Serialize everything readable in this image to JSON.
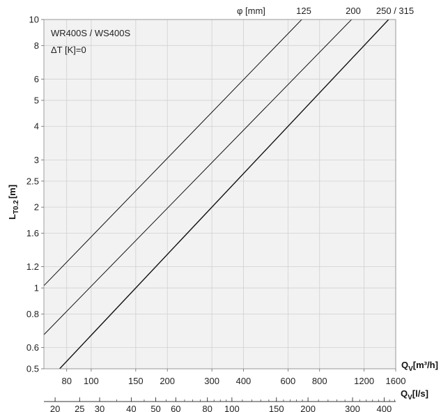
{
  "chart_data": {
    "type": "line",
    "title_lines": [
      "WR400S / WS400S",
      "ΔT [K]=0"
    ],
    "x_scale": "log",
    "y_scale": "log",
    "xlim": [
      65,
      1600
    ],
    "ylim": [
      0.5,
      10
    ],
    "xlabel_main": "Q",
    "xlabel_main_sub": "V",
    "xlabel_main_unit": "[m³/h]",
    "xlabel_secondary": "Q",
    "xlabel_secondary_sub": "V",
    "xlabel_secondary_unit": "[l/s]",
    "ylabel": "L",
    "ylabel_sub": "T0.2",
    "ylabel_unit": "[m]",
    "grid": true,
    "x_ticks": [
      80,
      100,
      150,
      200,
      300,
      400,
      600,
      800,
      1200,
      1600
    ],
    "x_tick_labels": [
      "80",
      "100",
      "150",
      "200",
      "300",
      "400",
      "600",
      "800",
      "1200",
      "1600"
    ],
    "y_ticks": [
      0.5,
      0.6,
      0.8,
      1,
      1.2,
      1.6,
      2,
      2.5,
      3,
      4,
      5,
      6,
      8,
      10
    ],
    "y_tick_labels": [
      "0.5",
      "0.6",
      "0.8",
      "1",
      "1.2",
      "1.6",
      "2",
      "2.5",
      "3",
      "4",
      "5",
      "6",
      "8",
      "10"
    ],
    "ls_ticks": [
      20,
      25,
      30,
      40,
      50,
      60,
      80,
      100,
      150,
      200,
      300,
      400
    ],
    "ls_tick_labels": [
      "20",
      "25",
      "30",
      "40",
      "50",
      "60",
      "80",
      "100",
      "150",
      "200",
      "300",
      "400"
    ],
    "top_axis_label": "φ [mm]",
    "series": [
      {
        "name": "125",
        "x": [
          65,
          680
        ],
        "y": [
          1.02,
          10
        ]
      },
      {
        "name": "200",
        "x": [
          65,
          1070
        ],
        "y": [
          0.67,
          10
        ]
      },
      {
        "name": "250 / 315",
        "x": [
          75,
          1500
        ],
        "y": [
          0.5,
          10
        ]
      }
    ]
  }
}
